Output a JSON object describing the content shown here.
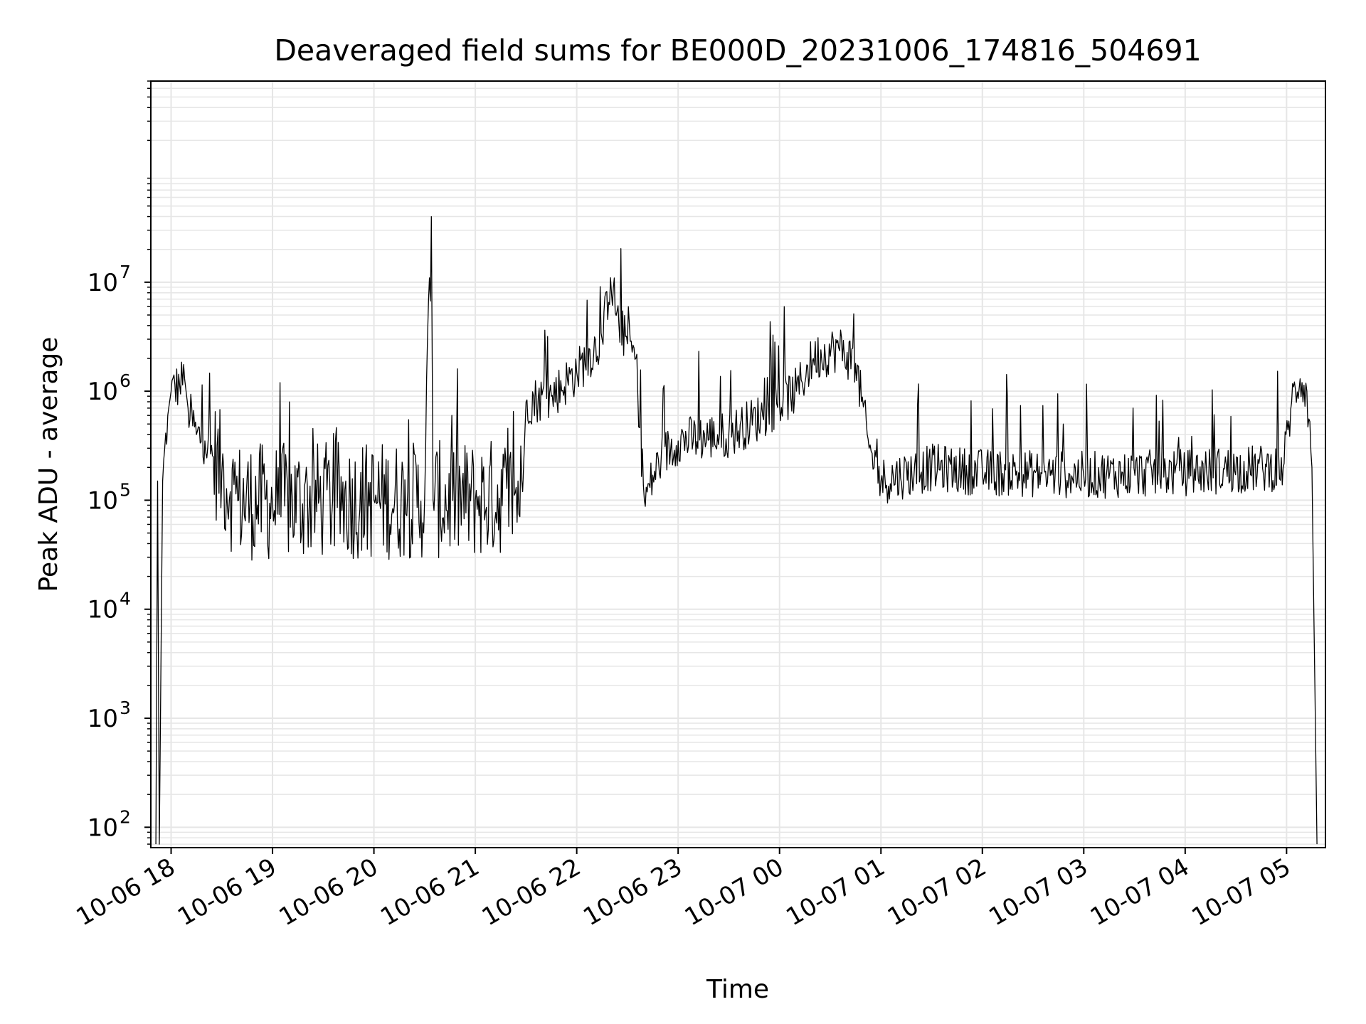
{
  "chart_data": {
    "type": "line",
    "title": "Deaveraged field sums for BE000D_20231006_174816_504691",
    "xlabel": "Time",
    "ylabel": "Peak ADU - average",
    "yscale": "log",
    "ylim": [
      65,
      700000000
    ],
    "xlim": [
      "2023-10-06 17:48",
      "2023-10-07 05:23"
    ],
    "grid": true,
    "grid_color": "#e6e6e6",
    "line_color": "#000000",
    "x_ticks": [
      {
        "time": "2023-10-06 18:00",
        "label": "10-06 18"
      },
      {
        "time": "2023-10-06 19:00",
        "label": "10-06 19"
      },
      {
        "time": "2023-10-06 20:00",
        "label": "10-06 20"
      },
      {
        "time": "2023-10-06 21:00",
        "label": "10-06 21"
      },
      {
        "time": "2023-10-06 22:00",
        "label": "10-06 22"
      },
      {
        "time": "2023-10-06 23:00",
        "label": "10-06 23"
      },
      {
        "time": "2023-10-07 00:00",
        "label": "10-07 00"
      },
      {
        "time": "2023-10-07 01:00",
        "label": "10-07 01"
      },
      {
        "time": "2023-10-07 02:00",
        "label": "10-07 02"
      },
      {
        "time": "2023-10-07 03:00",
        "label": "10-07 03"
      },
      {
        "time": "2023-10-07 04:00",
        "label": "10-07 04"
      },
      {
        "time": "2023-10-07 05:00",
        "label": "10-07 05"
      }
    ],
    "y_ticks": [
      {
        "value": 100,
        "base": "10",
        "exp": "2"
      },
      {
        "value": 1000,
        "base": "10",
        "exp": "3"
      },
      {
        "value": 10000,
        "base": "10",
        "exp": "4"
      },
      {
        "value": 100000,
        "base": "10",
        "exp": "5"
      },
      {
        "value": 1000000,
        "base": "10",
        "exp": "6"
      },
      {
        "value": 10000000,
        "base": "10",
        "exp": "7"
      }
    ],
    "series": [
      {
        "points": [
          [
            "2023-10-06 17:51",
            70
          ],
          [
            "2023-10-06 17:52",
            150000
          ],
          [
            "2023-10-06 17:53",
            70
          ],
          [
            "2023-10-06 17:55",
            150000
          ],
          [
            "2023-10-06 17:58",
            600000
          ],
          [
            "2023-10-06 18:00",
            1000000
          ],
          [
            "2023-10-06 18:05",
            1150000
          ],
          [
            "2023-10-06 18:08",
            1300000
          ],
          [
            "2023-10-06 18:10",
            700000
          ],
          [
            "2023-10-06 18:15",
            400000
          ],
          [
            "2023-10-06 18:20",
            350000
          ],
          [
            "2023-10-06 18:25",
            250000
          ],
          [
            "2023-10-06 18:30",
            180000
          ],
          [
            "2023-10-06 18:35",
            120000
          ],
          [
            "2023-10-06 18:40",
            100000
          ],
          [
            "2023-10-06 19:00",
            95000
          ],
          [
            "2023-10-06 19:30",
            100000
          ],
          [
            "2023-10-06 20:00",
            100000
          ],
          [
            "2023-10-06 20:30",
            100000
          ],
          [
            "2023-10-06 20:34",
            40000000
          ],
          [
            "2023-10-06 20:35",
            100000
          ],
          [
            "2023-10-06 21:00",
            100000
          ],
          [
            "2023-10-06 21:28",
            120000
          ],
          [
            "2023-10-06 21:30",
            800000
          ],
          [
            "2023-10-06 21:45",
            900000
          ],
          [
            "2023-10-06 22:00",
            1500000
          ],
          [
            "2023-10-06 22:15",
            3000000
          ],
          [
            "2023-10-06 22:20",
            11000000
          ],
          [
            "2023-10-06 22:25",
            4000000
          ],
          [
            "2023-10-06 22:35",
            2000000
          ],
          [
            "2023-10-06 22:40",
            100000
          ],
          [
            "2023-10-06 22:50",
            250000
          ],
          [
            "2023-10-06 23:00",
            350000
          ],
          [
            "2023-10-06 23:30",
            400000
          ],
          [
            "2023-10-06 23:50",
            600000
          ],
          [
            "2023-10-07 00:10",
            1000000
          ],
          [
            "2023-10-07 00:20",
            2000000
          ],
          [
            "2023-10-07 00:35",
            2500000
          ],
          [
            "2023-10-07 00:45",
            1800000
          ],
          [
            "2023-10-07 00:53",
            300000
          ],
          [
            "2023-10-07 01:00",
            150000
          ],
          [
            "2023-10-07 01:30",
            200000
          ],
          [
            "2023-10-07 02:00",
            180000
          ],
          [
            "2023-10-07 03:00",
            170000
          ],
          [
            "2023-10-07 04:00",
            180000
          ],
          [
            "2023-10-07 04:58",
            200000
          ],
          [
            "2023-10-07 05:03",
            800000
          ],
          [
            "2023-10-07 05:08",
            1300000
          ],
          [
            "2023-10-07 05:12",
            1000000
          ],
          [
            "2023-10-07 05:15",
            200000
          ],
          [
            "2023-10-07 05:18",
            70
          ]
        ]
      }
    ]
  }
}
